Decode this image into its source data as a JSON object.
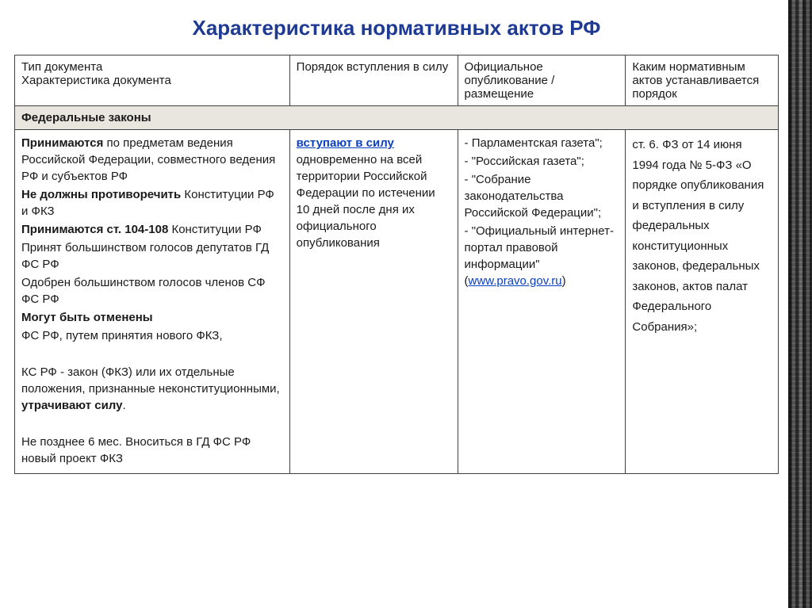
{
  "title": "Характеристика нормативных актов РФ",
  "colors": {
    "title": "#1f3a93",
    "section_bg": "#e9e6df",
    "section_text": "#12298a",
    "border": "#404040",
    "link": "#0a40c0"
  },
  "headers": {
    "col1_line1": "Тип документа",
    "col1_line2": "Характеристика документа",
    "col2": "Порядок вступления в силу",
    "col3": "Официальное опубликование / размещение",
    "col4": "Каким нормативным актов устанавливается порядок"
  },
  "section": "Федеральные законы",
  "row": {
    "col1": {
      "p1_b": "Принимаются",
      "p1": " по предметам ведения Российской Федерации, совместного ведения РФ и субъектов РФ",
      "p2_b": "Не должны противоречить",
      "p2": " Конституции РФ и ФКЗ",
      "p3_b": "Принимаются ст. 104-108",
      "p3": " Конституции РФ",
      "p4": "Принят большинством голосов депутатов ГД ФС РФ",
      "p5": "Одобрен большинством голосов членов СФ ФС РФ",
      "p6_b": "Могут быть отменены",
      "p7": "ФС РФ, путем принятия нового ФКЗ,",
      "p8a": "КС РФ - закон (ФКЗ) или их отдельные положения, признанные неконституционными, ",
      "p8_b": "утрачивают силу",
      "p8c": ".",
      "p9": "Не позднее 6 мес. Вноситься в ГД ФС РФ новый проект ФКЗ"
    },
    "col2": {
      "link": "вступают в силу",
      "rest": " одновременно на всей территории Российской Федерации по истечении 10 дней после дня их официального опубликования"
    },
    "col3": {
      "i1": "- Парламентская газета\";",
      "i2": "- \"Российская газета\";",
      "i3": "- \"Собрание законодательства Российской Федерации\";",
      "i4a": "- \"Официальный интернет-портал правовой информации\" (",
      "i4_link": "www.pravo.gov.ru",
      "i4b": ")"
    },
    "col4": "ст. 6. ФЗ от 14 июня 1994 года № 5-ФЗ «О порядке опубликования и вступления в силу федеральных конституционных законов, федеральных законов, актов палат Федерального Собрания»;"
  }
}
